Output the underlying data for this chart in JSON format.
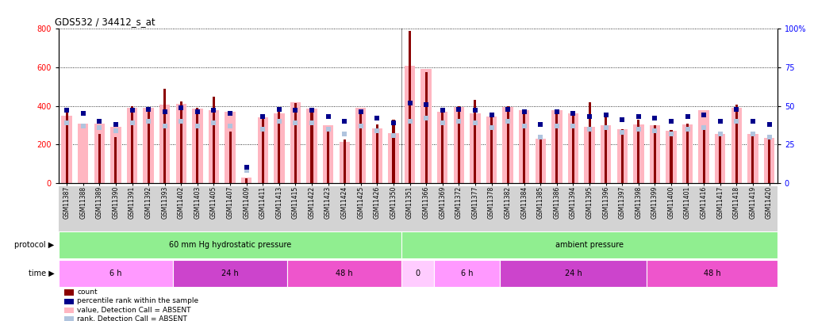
{
  "title": "GDS532 / 34412_s_at",
  "samples": [
    "GSM11387",
    "GSM11388",
    "GSM11389",
    "GSM11390",
    "GSM11391",
    "GSM11392",
    "GSM11393",
    "GSM11402",
    "GSM11403",
    "GSM11405",
    "GSM11407",
    "GSM11409",
    "GSM11411",
    "GSM11413",
    "GSM11415",
    "GSM11422",
    "GSM11423",
    "GSM11424",
    "GSM11425",
    "GSM11426",
    "GSM11350",
    "GSM11351",
    "GSM11366",
    "GSM11369",
    "GSM11372",
    "GSM11377",
    "GSM11378",
    "GSM11382",
    "GSM11384",
    "GSM11385",
    "GSM11386",
    "GSM11394",
    "GSM11395",
    "GSM11396",
    "GSM11397",
    "GSM11398",
    "GSM11399",
    "GSM11400",
    "GSM11401",
    "GSM11416",
    "GSM11417",
    "GSM11418",
    "GSM11419",
    "GSM11420"
  ],
  "count": [
    370,
    0,
    255,
    240,
    400,
    375,
    490,
    425,
    390,
    450,
    265,
    25,
    350,
    395,
    415,
    390,
    290,
    225,
    375,
    305,
    330,
    790,
    575,
    375,
    400,
    430,
    360,
    400,
    380,
    235,
    380,
    355,
    420,
    365,
    280,
    330,
    300,
    275,
    310,
    290,
    265,
    405,
    265,
    240
  ],
  "value_absent": [
    350,
    310,
    310,
    290,
    390,
    390,
    405,
    410,
    385,
    380,
    370,
    30,
    340,
    360,
    420,
    385,
    300,
    215,
    390,
    285,
    260,
    610,
    590,
    370,
    395,
    360,
    345,
    395,
    380,
    230,
    380,
    360,
    290,
    300,
    280,
    305,
    300,
    270,
    305,
    380,
    255,
    390,
    255,
    235
  ],
  "rank_present": [
    47,
    45,
    40,
    38,
    47,
    48,
    46,
    49,
    46,
    47,
    45,
    10,
    43,
    48,
    47,
    47,
    43,
    40,
    46,
    42,
    39,
    52,
    51,
    47,
    48,
    47,
    44,
    48,
    46,
    38,
    46,
    45,
    43,
    44,
    41,
    43,
    42,
    40,
    43,
    44,
    40,
    48,
    40,
    38
  ],
  "rank_absent": [
    39,
    37,
    36,
    34,
    39,
    40,
    37,
    40,
    37,
    39,
    37,
    8,
    35,
    40,
    39,
    39,
    35,
    32,
    37,
    34,
    31,
    40,
    42,
    39,
    40,
    39,
    36,
    40,
    37,
    30,
    37,
    37,
    35,
    36,
    33,
    35,
    34,
    32,
    35,
    36,
    32,
    40,
    32,
    30
  ],
  "protocol_groups": [
    {
      "label": "60 mm Hg hydrostatic pressure",
      "start": 0,
      "end": 20,
      "color": "#90EE90"
    },
    {
      "label": "ambient pressure",
      "start": 21,
      "end": 43,
      "color": "#90EE90"
    }
  ],
  "time_groups": [
    {
      "label": "6 h",
      "start": 0,
      "end": 6,
      "color": "#FF99FF"
    },
    {
      "label": "24 h",
      "start": 7,
      "end": 13,
      "color": "#CC44CC"
    },
    {
      "label": "48 h",
      "start": 14,
      "end": 20,
      "color": "#EE55CC"
    },
    {
      "label": "0",
      "start": 21,
      "end": 22,
      "color": "#FFCCFF"
    },
    {
      "label": "6 h",
      "start": 23,
      "end": 26,
      "color": "#FF99FF"
    },
    {
      "label": "24 h",
      "start": 27,
      "end": 35,
      "color": "#CC44CC"
    },
    {
      "label": "48 h",
      "start": 36,
      "end": 43,
      "color": "#EE55CC"
    }
  ],
  "ylim_left": [
    0,
    800
  ],
  "ylim_right": [
    0,
    100
  ],
  "yticks_left": [
    0,
    200,
    400,
    600,
    800
  ],
  "yticks_right": [
    0,
    25,
    50,
    75,
    100
  ],
  "color_count": "#8B0000",
  "color_rank_present": "#00008B",
  "color_value_absent": "#FFB6C1",
  "color_rank_absent": "#B0C4DE",
  "protocol_divider": 20,
  "bg_xtick": "#D3D3D3"
}
